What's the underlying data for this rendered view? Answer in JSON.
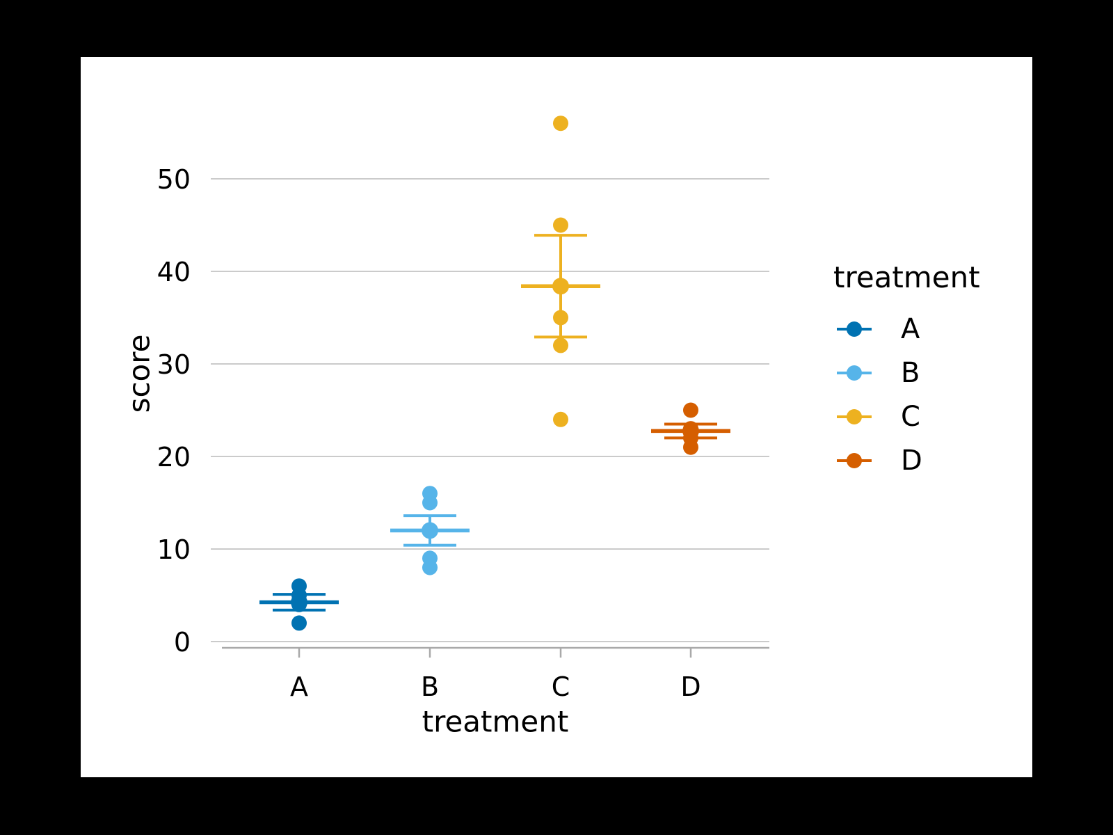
{
  "page": {
    "background": "#000000",
    "figure_background": "#ffffff"
  },
  "chart_data": {
    "type": "scatter",
    "subtype": "categorical strip points with mean point and standard-error bars (pointplot)",
    "title": "",
    "xlabel": "treatment",
    "ylabel": "score",
    "categories": [
      "A",
      "B",
      "C",
      "D"
    ],
    "y_ticks": [
      0,
      10,
      20,
      30,
      40,
      50
    ],
    "ylim": [
      -1,
      58
    ],
    "grid": "horizontal-only",
    "axis_colors": {
      "gridline": "#cbcbcb",
      "spine": "#a9a9a9",
      "text": "#000000"
    },
    "legend": {
      "title": "treatment",
      "position": "right-outside"
    },
    "series": [
      {
        "name": "A",
        "color": "#0072B2",
        "points": [
          6,
          5,
          4,
          2
        ],
        "mean": 4.25,
        "ci": [
          3.4,
          5.1
        ]
      },
      {
        "name": "B",
        "color": "#56B4E9",
        "points": [
          16,
          15,
          12,
          9,
          8
        ],
        "mean": 12.0,
        "ci": [
          10.4,
          13.6
        ]
      },
      {
        "name": "C",
        "color": "#EDB120",
        "points": [
          56,
          45,
          35,
          32,
          24
        ],
        "mean": 38.4,
        "ci": [
          32.9,
          43.9
        ]
      },
      {
        "name": "D",
        "color": "#D55E00",
        "points": [
          25,
          23,
          22,
          21
        ],
        "mean": 22.75,
        "ci": [
          22.0,
          23.5
        ]
      }
    ]
  }
}
